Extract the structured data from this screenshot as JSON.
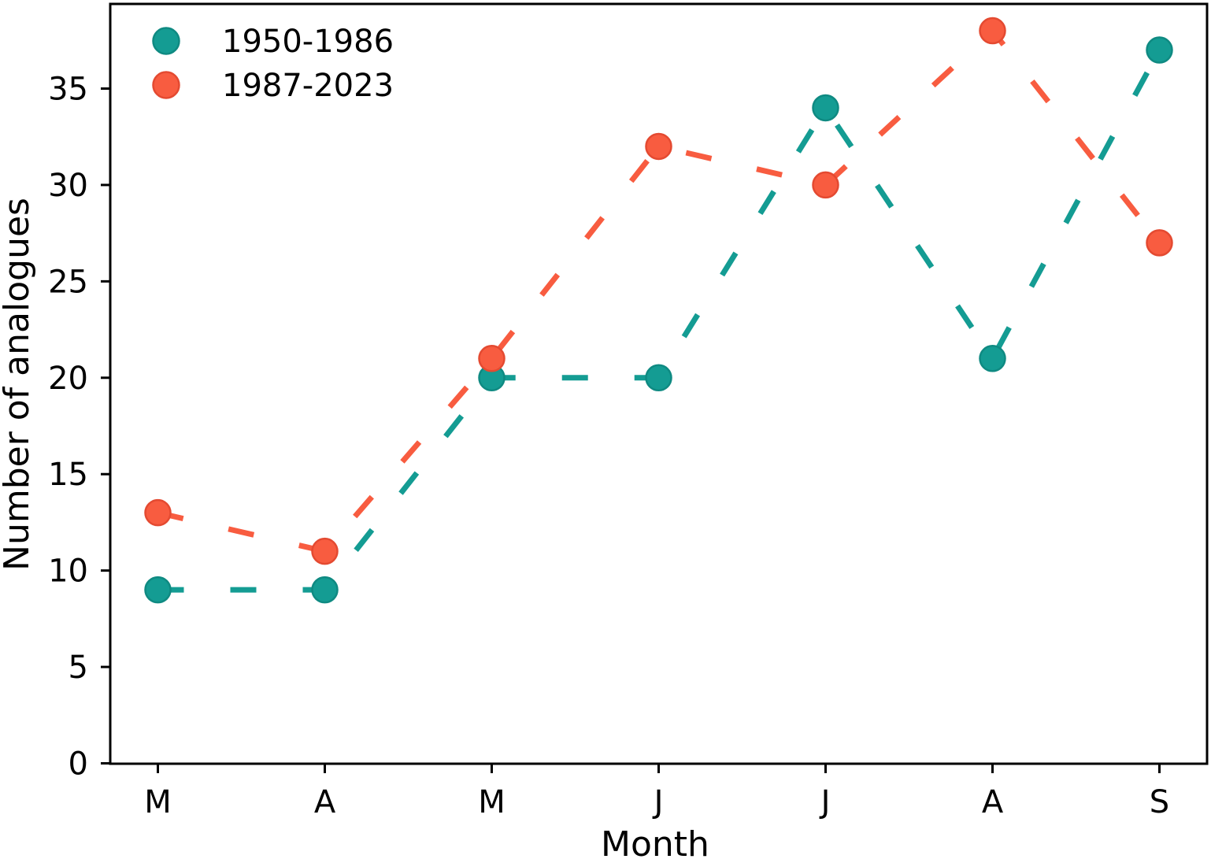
{
  "chart_data": {
    "type": "line",
    "title": "",
    "xlabel": "Month",
    "ylabel": "Number of analogues",
    "categories": [
      "M",
      "A",
      "M",
      "J",
      "J",
      "A",
      "S"
    ],
    "series": [
      {
        "name": "1950-1986",
        "color": "#149C93",
        "edge_color": "#0F8A82",
        "linestyle": "dashed",
        "marker": "circle",
        "values": [
          9,
          9,
          20,
          20,
          34,
          21,
          37
        ]
      },
      {
        "name": "1987-2023",
        "color": "#F85C40",
        "edge_color": "#E44A31",
        "linestyle": "dashed",
        "marker": "circle",
        "values": [
          13,
          11,
          21,
          32,
          30,
          38,
          27
        ]
      }
    ],
    "yticks": [
      0,
      5,
      10,
      15,
      20,
      25,
      30,
      35
    ],
    "ylim": [
      0,
      39.4
    ],
    "xlim_categories": [
      "M",
      "S"
    ],
    "legend_position": "upper-left",
    "grid": false,
    "axis_color": "#000000",
    "background": "#ffffff"
  }
}
